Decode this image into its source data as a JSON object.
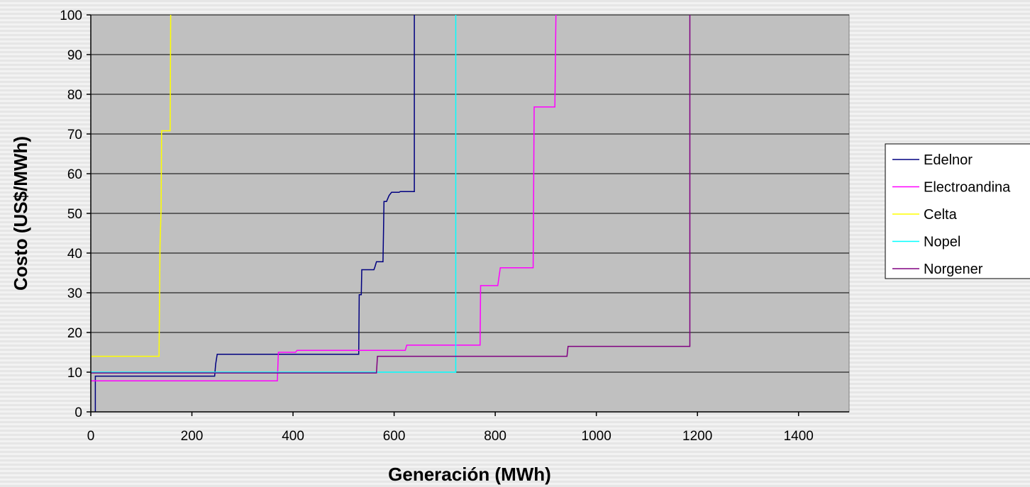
{
  "chart_data": {
    "type": "line",
    "xlabel": "Generación (MWh)",
    "ylabel": "Costo (US$/MWh)",
    "xlim": [
      0,
      1500
    ],
    "ylim": [
      0,
      100
    ],
    "x_ticks": [
      0,
      200,
      400,
      600,
      800,
      1000,
      1200,
      1400
    ],
    "y_ticks": [
      0,
      10,
      20,
      30,
      40,
      50,
      60,
      70,
      80,
      90,
      100
    ],
    "plot_background": "#c0c0c0",
    "grid": "horizontal",
    "legend_position": "right",
    "series": [
      {
        "name": "Edelnor",
        "color": "#000080",
        "points": [
          [
            9,
            0
          ],
          [
            9,
            9
          ],
          [
            245,
            9
          ],
          [
            247,
            12
          ],
          [
            250,
            14.5
          ],
          [
            530,
            14.5
          ],
          [
            531,
            29.5
          ],
          [
            535,
            29.5
          ],
          [
            536,
            35.8
          ],
          [
            560,
            35.8
          ],
          [
            562,
            36.5
          ],
          [
            565,
            37.8
          ],
          [
            578,
            37.8
          ],
          [
            579,
            45
          ],
          [
            580,
            53
          ],
          [
            585,
            53
          ],
          [
            590,
            54.5
          ],
          [
            595,
            55.3
          ],
          [
            610,
            55.3
          ],
          [
            612,
            55.5
          ],
          [
            640,
            55.5
          ],
          [
            640,
            100
          ]
        ]
      },
      {
        "name": "Electroandina",
        "color": "#ff00ff",
        "points": [
          [
            0,
            7.8
          ],
          [
            369,
            7.8
          ],
          [
            371,
            15
          ],
          [
            405,
            15
          ],
          [
            408,
            15.5
          ],
          [
            622,
            15.5
          ],
          [
            625,
            16.8
          ],
          [
            770,
            16.8
          ],
          [
            771,
            31.8
          ],
          [
            805,
            31.8
          ],
          [
            810,
            36.3
          ],
          [
            875,
            36.3
          ],
          [
            877,
            76.8
          ],
          [
            918,
            76.8
          ],
          [
            920,
            100
          ]
        ]
      },
      {
        "name": "Celta",
        "color": "#ffff00",
        "points": [
          [
            0,
            14
          ],
          [
            135,
            14
          ],
          [
            137,
            42
          ],
          [
            139,
            51
          ],
          [
            140,
            70.8
          ],
          [
            157,
            70.8
          ],
          [
            158,
            100
          ]
        ]
      },
      {
        "name": "Nopel",
        "color": "#00ffff",
        "points": [
          [
            0,
            10
          ],
          [
            722,
            10
          ],
          [
            722,
            100
          ]
        ]
      },
      {
        "name": "Norgener",
        "color": "#800080",
        "points": [
          [
            0,
            9.8
          ],
          [
            565,
            9.8
          ],
          [
            567,
            14
          ],
          [
            942,
            14
          ],
          [
            944,
            16.5
          ],
          [
            1185,
            16.5
          ],
          [
            1185,
            100
          ]
        ]
      }
    ]
  }
}
